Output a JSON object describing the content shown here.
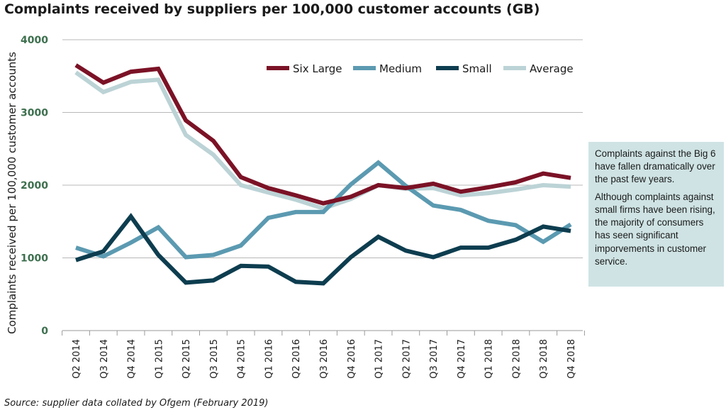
{
  "title": "Complaints received by suppliers per 100,000 customer accounts (GB)",
  "source": "Source: supplier data collated by Ofgem (February 2019)",
  "callout": {
    "p1": "Complaints against the Big 6 have fallen dramatically over the past few years.",
    "p2": "Although complaints against small firms have been rising, the majority of consumers has seen significant imporvements in customer service."
  },
  "chart_data": {
    "type": "line",
    "title": "Complaints received by suppliers per 100,000 customer accounts (GB)",
    "xlabel": "",
    "ylabel": "Complaints received per 100,000 customer accounts",
    "ylim": [
      0,
      4000
    ],
    "yticks": [
      0,
      1000,
      2000,
      3000,
      4000
    ],
    "grid": "horizontal",
    "legend_position": "top-right",
    "categories": [
      "Q2 2014",
      "Q3 2014",
      "Q4 2014",
      "Q1 2015",
      "Q2 2015",
      "Q3 2015",
      "Q4 2015",
      "Q1 2016",
      "Q2 2016",
      "Q3 2016",
      "Q4 2016",
      "Q1 2017",
      "Q2 2017",
      "Q3 2017",
      "Q4 2017",
      "Q1 2018",
      "Q2 2018",
      "Q3 2018",
      "Q4 2018"
    ],
    "series": [
      {
        "name": "Six Large",
        "color": "#7b1226",
        "values": [
          3650,
          3410,
          3560,
          3600,
          2890,
          2610,
          2110,
          1960,
          1860,
          1750,
          1840,
          2000,
          1960,
          2020,
          1910,
          1970,
          2040,
          2160,
          2100
        ]
      },
      {
        "name": "Medium",
        "color": "#5b9ab1",
        "values": [
          1140,
          1020,
          1210,
          1420,
          1010,
          1040,
          1170,
          1550,
          1630,
          1630,
          2010,
          2310,
          1990,
          1720,
          1660,
          1510,
          1450,
          1220,
          1460
        ]
      },
      {
        "name": "Small",
        "color": "#0d3d4f",
        "values": [
          970,
          1090,
          1570,
          1040,
          660,
          690,
          890,
          880,
          670,
          650,
          1010,
          1290,
          1100,
          1010,
          1140,
          1140,
          1250,
          1430,
          1370
        ]
      },
      {
        "name": "Average",
        "color": "#bcd3d6",
        "values": [
          3550,
          3280,
          3420,
          3450,
          2690,
          2420,
          2000,
          1900,
          1800,
          1680,
          1810,
          2000,
          1950,
          1960,
          1860,
          1890,
          1940,
          2000,
          1980
        ]
      }
    ]
  }
}
